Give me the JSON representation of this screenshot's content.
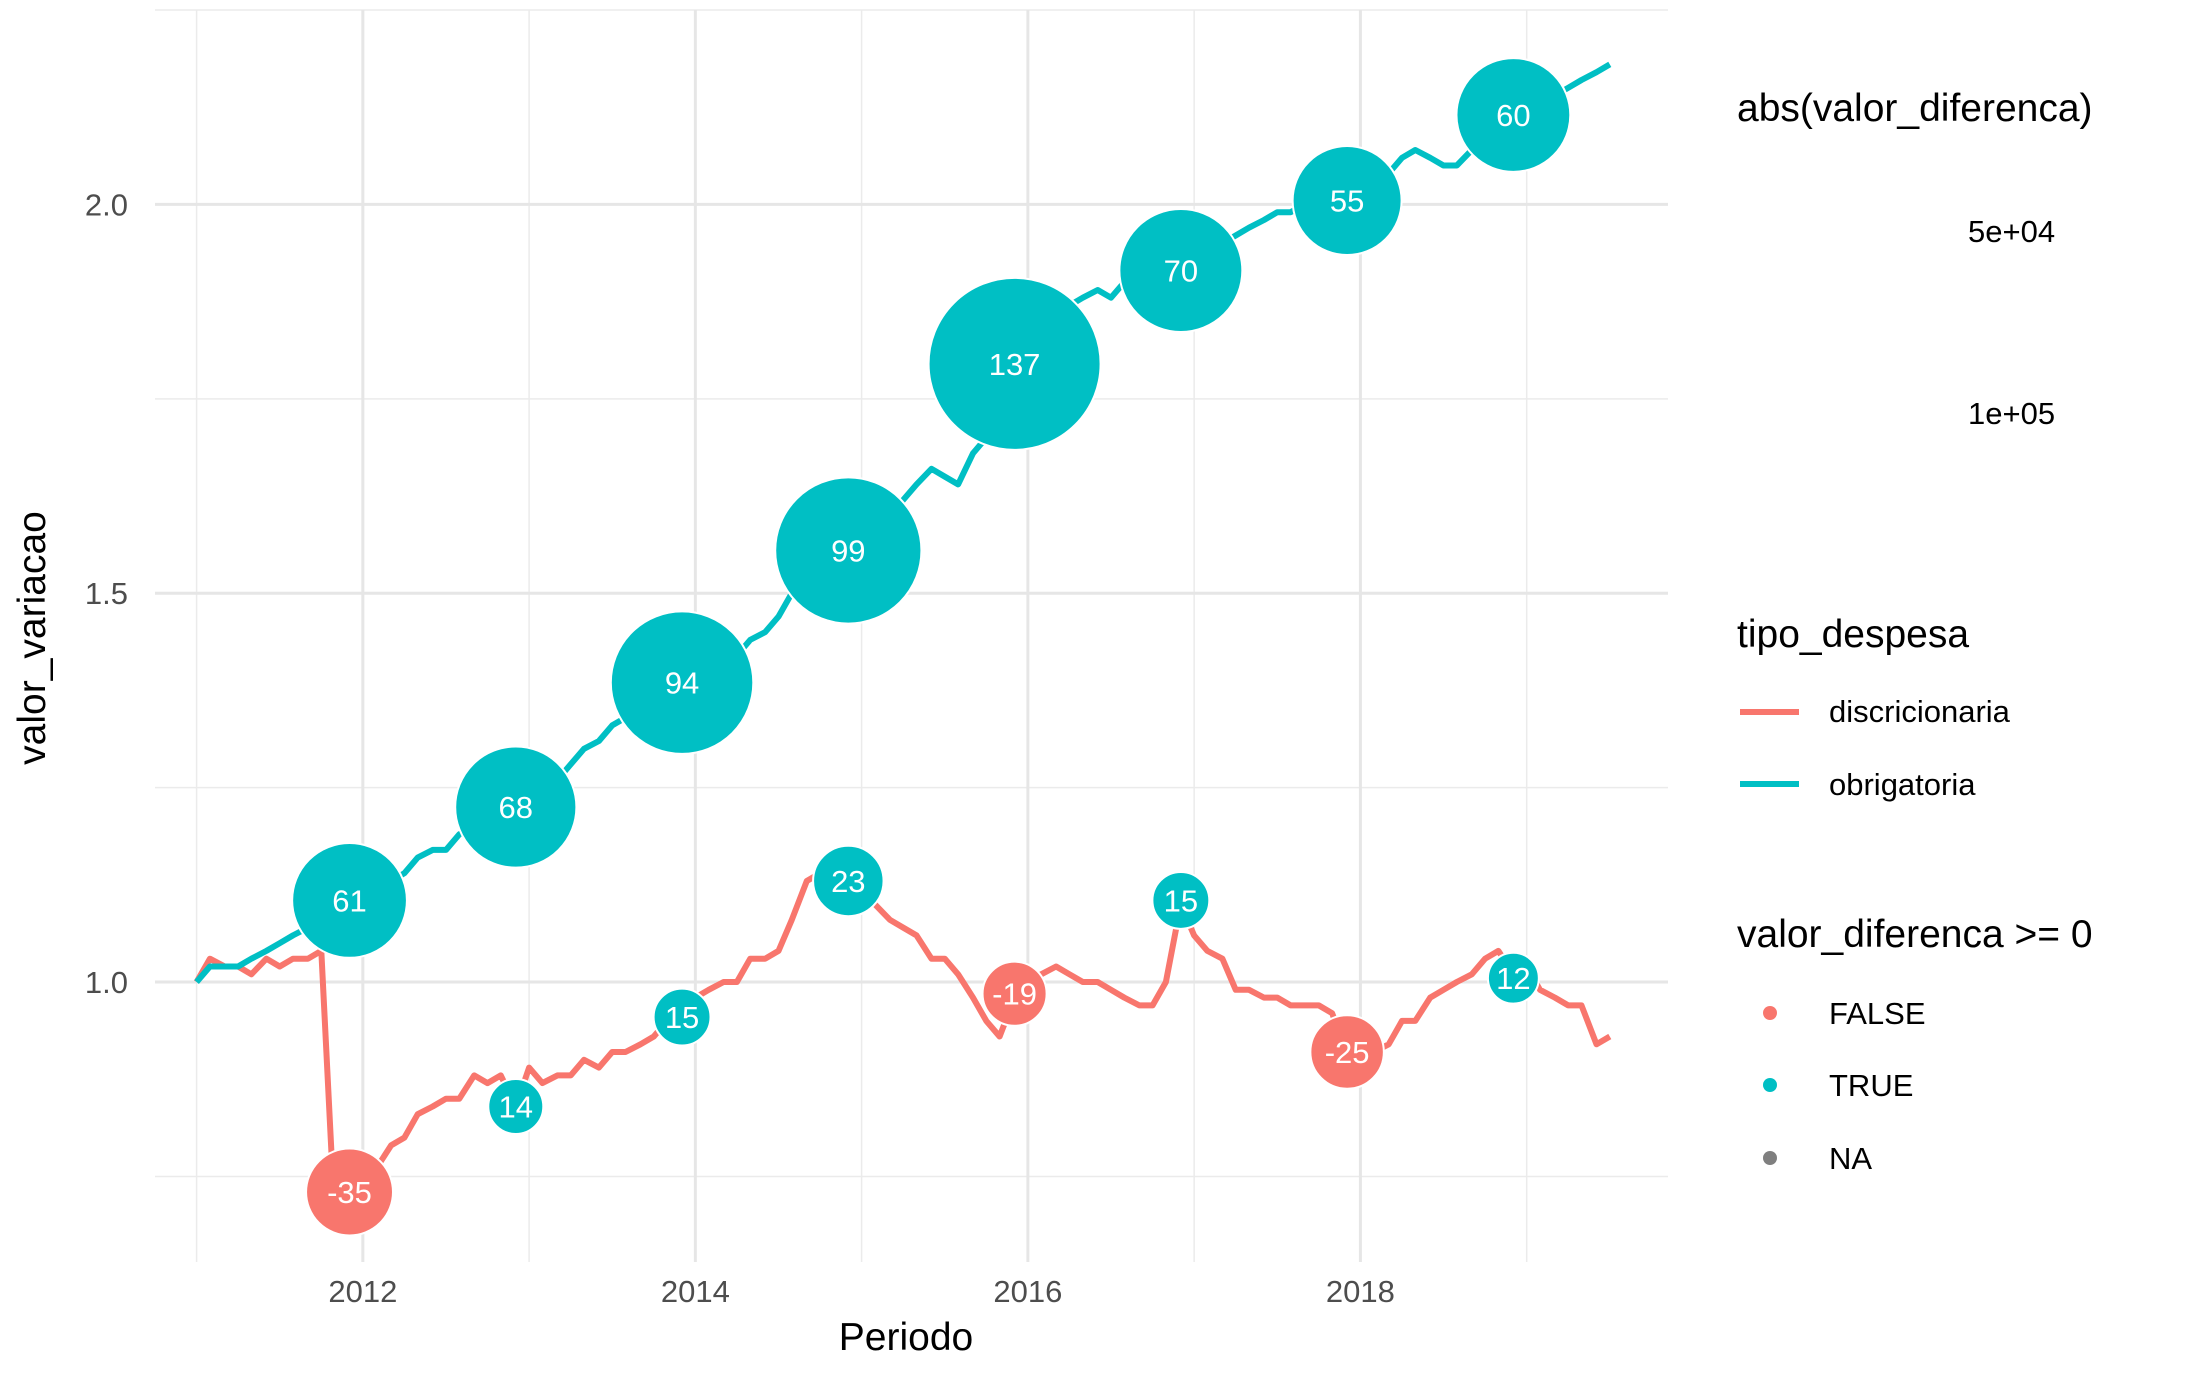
{
  "chart_data": {
    "type": "line",
    "xlabel": "Periodo",
    "ylabel": "valor_variacao",
    "xlim": [
      2010.75,
      2019.85
    ],
    "ylim": [
      0.64,
      2.25
    ],
    "x_ticks": [
      2012,
      2014,
      2016,
      2018
    ],
    "x_tick_labels": [
      "2012",
      "2014",
      "2016",
      "2018"
    ],
    "y_ticks": [
      1.0,
      1.5,
      2.0
    ],
    "y_tick_labels": [
      "1.0",
      "1.5",
      "2.0"
    ],
    "grid": true,
    "colors": {
      "discricionaria": "#F8766D",
      "obrigatoria": "#00BFC4",
      "na": "#7F7F7F"
    },
    "series": [
      {
        "name": "discricionaria",
        "points": [
          [
            2011.0,
            1.0
          ],
          [
            2011.08,
            1.03
          ],
          [
            2011.17,
            1.02
          ],
          [
            2011.25,
            1.02
          ],
          [
            2011.33,
            1.01
          ],
          [
            2011.42,
            1.03
          ],
          [
            2011.5,
            1.02
          ],
          [
            2011.58,
            1.03
          ],
          [
            2011.67,
            1.03
          ],
          [
            2011.75,
            1.04
          ],
          [
            2011.83,
            0.7
          ],
          [
            2011.92,
            0.73
          ],
          [
            2012.0,
            0.74
          ],
          [
            2012.08,
            0.76
          ],
          [
            2012.17,
            0.79
          ],
          [
            2012.25,
            0.8
          ],
          [
            2012.33,
            0.83
          ],
          [
            2012.42,
            0.84
          ],
          [
            2012.5,
            0.85
          ],
          [
            2012.58,
            0.85
          ],
          [
            2012.67,
            0.88
          ],
          [
            2012.75,
            0.87
          ],
          [
            2012.83,
            0.88
          ],
          [
            2012.92,
            0.84
          ],
          [
            2013.0,
            0.89
          ],
          [
            2013.08,
            0.87
          ],
          [
            2013.17,
            0.88
          ],
          [
            2013.25,
            0.88
          ],
          [
            2013.33,
            0.9
          ],
          [
            2013.42,
            0.89
          ],
          [
            2013.5,
            0.91
          ],
          [
            2013.58,
            0.91
          ],
          [
            2013.67,
            0.92
          ],
          [
            2013.75,
            0.93
          ],
          [
            2013.83,
            0.95
          ],
          [
            2013.92,
            0.96
          ],
          [
            2014.0,
            0.98
          ],
          [
            2014.08,
            0.99
          ],
          [
            2014.17,
            1.0
          ],
          [
            2014.25,
            1.0
          ],
          [
            2014.33,
            1.03
          ],
          [
            2014.42,
            1.03
          ],
          [
            2014.5,
            1.04
          ],
          [
            2014.58,
            1.08
          ],
          [
            2014.67,
            1.13
          ],
          [
            2014.75,
            1.14
          ],
          [
            2014.83,
            1.15
          ],
          [
            2014.92,
            1.13
          ],
          [
            2015.0,
            1.12
          ],
          [
            2015.08,
            1.1
          ],
          [
            2015.17,
            1.08
          ],
          [
            2015.25,
            1.07
          ],
          [
            2015.33,
            1.06
          ],
          [
            2015.42,
            1.03
          ],
          [
            2015.5,
            1.03
          ],
          [
            2015.58,
            1.01
          ],
          [
            2015.67,
            0.98
          ],
          [
            2015.75,
            0.95
          ],
          [
            2015.83,
            0.93
          ],
          [
            2015.92,
            0.98
          ],
          [
            2016.0,
            0.99
          ],
          [
            2016.08,
            1.01
          ],
          [
            2016.17,
            1.02
          ],
          [
            2016.25,
            1.01
          ],
          [
            2016.33,
            1.0
          ],
          [
            2016.42,
            1.0
          ],
          [
            2016.5,
            0.99
          ],
          [
            2016.58,
            0.98
          ],
          [
            2016.67,
            0.97
          ],
          [
            2016.75,
            0.97
          ],
          [
            2016.83,
            1.0
          ],
          [
            2016.92,
            1.1
          ],
          [
            2017.0,
            1.06
          ],
          [
            2017.08,
            1.04
          ],
          [
            2017.17,
            1.03
          ],
          [
            2017.25,
            0.99
          ],
          [
            2017.33,
            0.99
          ],
          [
            2017.42,
            0.98
          ],
          [
            2017.5,
            0.98
          ],
          [
            2017.58,
            0.97
          ],
          [
            2017.67,
            0.97
          ],
          [
            2017.75,
            0.97
          ],
          [
            2017.83,
            0.96
          ],
          [
            2017.92,
            0.91
          ],
          [
            2018.0,
            0.93
          ],
          [
            2018.08,
            0.91
          ],
          [
            2018.17,
            0.92
          ],
          [
            2018.25,
            0.95
          ],
          [
            2018.33,
            0.95
          ],
          [
            2018.42,
            0.98
          ],
          [
            2018.5,
            0.99
          ],
          [
            2018.58,
            1.0
          ],
          [
            2018.67,
            1.01
          ],
          [
            2018.75,
            1.03
          ],
          [
            2018.83,
            1.04
          ],
          [
            2018.92,
            1.01
          ],
          [
            2019.0,
            1.02
          ],
          [
            2019.08,
            0.99
          ],
          [
            2019.17,
            0.98
          ],
          [
            2019.25,
            0.97
          ],
          [
            2019.33,
            0.97
          ],
          [
            2019.42,
            0.92
          ],
          [
            2019.5,
            0.93
          ]
        ]
      },
      {
        "name": "obrigatoria",
        "points": [
          [
            2011.0,
            1.0
          ],
          [
            2011.08,
            1.02
          ],
          [
            2011.17,
            1.02
          ],
          [
            2011.25,
            1.02
          ],
          [
            2011.33,
            1.03
          ],
          [
            2011.42,
            1.04
          ],
          [
            2011.5,
            1.05
          ],
          [
            2011.58,
            1.06
          ],
          [
            2011.67,
            1.07
          ],
          [
            2011.75,
            1.08
          ],
          [
            2011.83,
            1.09
          ],
          [
            2011.92,
            1.1
          ],
          [
            2012.0,
            1.11
          ],
          [
            2012.08,
            1.12
          ],
          [
            2012.17,
            1.13
          ],
          [
            2012.25,
            1.14
          ],
          [
            2012.33,
            1.16
          ],
          [
            2012.42,
            1.17
          ],
          [
            2012.5,
            1.17
          ],
          [
            2012.58,
            1.19
          ],
          [
            2012.67,
            1.2
          ],
          [
            2012.75,
            1.21
          ],
          [
            2012.83,
            1.22
          ],
          [
            2012.92,
            1.22
          ],
          [
            2013.0,
            1.23
          ],
          [
            2013.08,
            1.24
          ],
          [
            2013.17,
            1.26
          ],
          [
            2013.25,
            1.28
          ],
          [
            2013.33,
            1.3
          ],
          [
            2013.42,
            1.31
          ],
          [
            2013.5,
            1.33
          ],
          [
            2013.58,
            1.34
          ],
          [
            2013.67,
            1.35
          ],
          [
            2013.75,
            1.36
          ],
          [
            2013.83,
            1.37
          ],
          [
            2013.92,
            1.38
          ],
          [
            2014.0,
            1.39
          ],
          [
            2014.08,
            1.4
          ],
          [
            2014.17,
            1.41
          ],
          [
            2014.25,
            1.42
          ],
          [
            2014.33,
            1.44
          ],
          [
            2014.42,
            1.45
          ],
          [
            2014.5,
            1.47
          ],
          [
            2014.58,
            1.5
          ],
          [
            2014.67,
            1.52
          ],
          [
            2014.75,
            1.53
          ],
          [
            2014.83,
            1.55
          ],
          [
            2014.92,
            1.56
          ],
          [
            2015.0,
            1.57
          ],
          [
            2015.08,
            1.58
          ],
          [
            2015.17,
            1.6
          ],
          [
            2015.25,
            1.62
          ],
          [
            2015.33,
            1.64
          ],
          [
            2015.42,
            1.66
          ],
          [
            2015.5,
            1.65
          ],
          [
            2015.58,
            1.64
          ],
          [
            2015.67,
            1.68
          ],
          [
            2015.75,
            1.7
          ],
          [
            2015.83,
            1.73
          ],
          [
            2015.92,
            1.79
          ],
          [
            2016.0,
            1.81
          ],
          [
            2016.08,
            1.83
          ],
          [
            2016.17,
            1.85
          ],
          [
            2016.25,
            1.87
          ],
          [
            2016.33,
            1.88
          ],
          [
            2016.42,
            1.89
          ],
          [
            2016.5,
            1.88
          ],
          [
            2016.58,
            1.9
          ],
          [
            2016.67,
            1.91
          ],
          [
            2016.75,
            1.92
          ],
          [
            2016.83,
            1.92
          ],
          [
            2016.92,
            1.92
          ],
          [
            2017.0,
            1.93
          ],
          [
            2017.08,
            1.94
          ],
          [
            2017.17,
            1.95
          ],
          [
            2017.25,
            1.96
          ],
          [
            2017.33,
            1.97
          ],
          [
            2017.42,
            1.98
          ],
          [
            2017.5,
            1.99
          ],
          [
            2017.58,
            1.99
          ],
          [
            2017.67,
            2.0
          ],
          [
            2017.75,
            2.0
          ],
          [
            2017.83,
            2.01
          ],
          [
            2017.92,
            2.01
          ],
          [
            2018.0,
            2.02
          ],
          [
            2018.08,
            2.03
          ],
          [
            2018.17,
            2.04
          ],
          [
            2018.25,
            2.06
          ],
          [
            2018.33,
            2.07
          ],
          [
            2018.42,
            2.06
          ],
          [
            2018.5,
            2.05
          ],
          [
            2018.58,
            2.05
          ],
          [
            2018.67,
            2.07
          ],
          [
            2018.75,
            2.09
          ],
          [
            2018.83,
            2.1
          ],
          [
            2018.92,
            2.11
          ],
          [
            2019.0,
            2.12
          ],
          [
            2019.08,
            2.13
          ],
          [
            2019.17,
            2.14
          ],
          [
            2019.25,
            2.15
          ],
          [
            2019.33,
            2.16
          ],
          [
            2019.42,
            2.17
          ],
          [
            2019.5,
            2.18
          ]
        ]
      }
    ],
    "bubbles": [
      {
        "x": 2011.92,
        "y": 1.105,
        "label": "61",
        "size": 61,
        "positive": "TRUE"
      },
      {
        "x": 2012.92,
        "y": 1.225,
        "label": "68",
        "size": 68,
        "positive": "TRUE"
      },
      {
        "x": 2013.92,
        "y": 1.385,
        "label": "94",
        "size": 94,
        "positive": "TRUE"
      },
      {
        "x": 2014.92,
        "y": 1.555,
        "label": "99",
        "size": 99,
        "positive": "TRUE"
      },
      {
        "x": 2015.92,
        "y": 1.795,
        "label": "137",
        "size": 137,
        "positive": "TRUE"
      },
      {
        "x": 2016.92,
        "y": 1.915,
        "label": "70",
        "size": 70,
        "positive": "TRUE"
      },
      {
        "x": 2017.92,
        "y": 2.005,
        "label": "55",
        "size": 55,
        "positive": "TRUE"
      },
      {
        "x": 2018.92,
        "y": 2.115,
        "label": "60",
        "size": 60,
        "positive": "TRUE"
      },
      {
        "x": 2011.92,
        "y": 0.73,
        "label": "-35",
        "size": 35,
        "positive": "FALSE"
      },
      {
        "x": 2012.92,
        "y": 0.84,
        "label": "14",
        "size": 14,
        "positive": "TRUE"
      },
      {
        "x": 2013.92,
        "y": 0.955,
        "label": "15",
        "size": 15,
        "positive": "TRUE"
      },
      {
        "x": 2014.92,
        "y": 1.13,
        "label": "23",
        "size": 23,
        "positive": "TRUE"
      },
      {
        "x": 2015.92,
        "y": 0.985,
        "label": "-19",
        "size": 19,
        "positive": "FALSE"
      },
      {
        "x": 2016.92,
        "y": 1.105,
        "label": "15",
        "size": 15,
        "positive": "TRUE"
      },
      {
        "x": 2017.92,
        "y": 0.91,
        "label": "-25",
        "size": 25,
        "positive": "FALSE"
      },
      {
        "x": 2018.92,
        "y": 1.005,
        "label": "12",
        "size": 12,
        "positive": "TRUE"
      }
    ],
    "legend": {
      "placement": "right",
      "size_title": "abs(valor_diferenca)",
      "size_labels": [
        "5e+04",
        "1e+05"
      ],
      "line_title": "tipo_despesa",
      "line_labels": [
        "discricionaria",
        "obrigatoria"
      ],
      "point_title": "valor_diferenca >= 0",
      "point_labels": [
        "FALSE",
        "TRUE",
        "NA"
      ]
    }
  }
}
